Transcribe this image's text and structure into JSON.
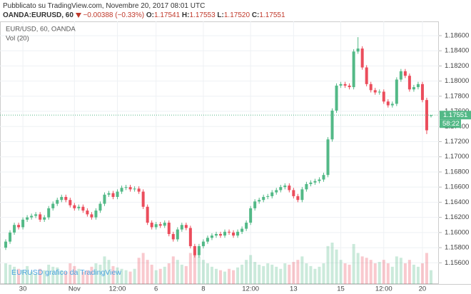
{
  "header": {
    "published": "Pubblicato su TradingView.com, Novembre 20, 2017 08:01 UTC",
    "symbol": "OANDA:EURUSD, 60",
    "change": "−0.00388 (−0.33%)",
    "ohlc": [
      {
        "key": "O:",
        "value": "1.17541"
      },
      {
        "key": "H:",
        "value": "1.17553"
      },
      {
        "key": "L:",
        "value": "1.17520"
      },
      {
        "key": "C:",
        "value": "1.17551"
      }
    ]
  },
  "chart_data": {
    "type": "candlestick",
    "legend": "EUR/USD, 60, OANDA",
    "volume_label": "Vol (20)",
    "countdown": "58:22",
    "watermark": "EURUSD grafico da TradingView",
    "up_color": "#53b987",
    "down_color": "#eb4d5c",
    "grid": true,
    "xlim": [
      -0.5,
      100
    ],
    "ylim": [
      1.1532,
      1.18788
    ],
    "xticks": [
      {
        "value": 4,
        "label": "30"
      },
      {
        "value": 16,
        "label": "Nov"
      },
      {
        "value": 26,
        "label": "12:00"
      },
      {
        "value": 35,
        "label": "6"
      },
      {
        "value": 46,
        "label": "8"
      },
      {
        "value": 57,
        "label": "12:00"
      },
      {
        "value": 67,
        "label": "13"
      },
      {
        "value": 78,
        "label": "15"
      },
      {
        "value": 88,
        "label": "12:00"
      },
      {
        "value": 97,
        "label": "20"
      }
    ],
    "yticks": [
      {
        "value": 1.156,
        "label": "1.15600"
      },
      {
        "value": 1.158,
        "label": "1.15800"
      },
      {
        "value": 1.16,
        "label": "1.16000"
      },
      {
        "value": 1.162,
        "label": "1.16200"
      },
      {
        "value": 1.164,
        "label": "1.16400"
      },
      {
        "value": 1.166,
        "label": "1.16600"
      },
      {
        "value": 1.168,
        "label": "1.16800"
      },
      {
        "value": 1.17,
        "label": "1.17000"
      },
      {
        "value": 1.172,
        "label": "1.17200"
      },
      {
        "value": 1.174,
        "label": "1.17400"
      },
      {
        "value": 1.176,
        "label": "1.17600"
      },
      {
        "value": 1.178,
        "label": "1.17800"
      },
      {
        "value": 1.18,
        "label": "1.18000"
      },
      {
        "value": 1.182,
        "label": "1.18200"
      },
      {
        "value": 1.184,
        "label": "1.18400"
      },
      {
        "value": 1.186,
        "label": "1.18600"
      }
    ],
    "open": [
      1.158,
      1.1588,
      1.16,
      1.161,
      1.1607,
      1.1617,
      1.162,
      1.1622,
      1.1624,
      1.1617,
      1.162,
      1.1632,
      1.1638,
      1.1643,
      1.1647,
      1.1643,
      1.1636,
      1.1632,
      1.1634,
      1.1629,
      1.1624,
      1.162,
      1.1629,
      1.1638,
      1.165,
      1.1652,
      1.1647,
      1.1654,
      1.1659,
      1.166,
      1.1657,
      1.1658,
      1.1654,
      1.1634,
      1.1613,
      1.1607,
      1.1611,
      1.1609,
      1.1613,
      1.1598,
      1.1591,
      1.1604,
      1.161,
      1.1606,
      1.1582,
      1.157,
      1.1582,
      1.1588,
      1.1593,
      1.1596,
      1.1598,
      1.1596,
      1.1601,
      1.16,
      1.1596,
      1.1601,
      1.1605,
      1.1613,
      1.1632,
      1.1641,
      1.1643,
      1.1647,
      1.1648,
      1.1653,
      1.1656,
      1.166,
      1.1662,
      1.1656,
      1.1648,
      1.1643,
      1.1657,
      1.1664,
      1.1666,
      1.1668,
      1.167,
      1.1676,
      1.1723,
      1.1761,
      1.1794,
      1.1796,
      1.1794,
      1.1792,
      1.1839,
      1.1843,
      1.1818,
      1.1796,
      1.1788,
      1.1785,
      1.1786,
      1.1773,
      1.1768,
      1.177,
      1.1802,
      1.1813,
      1.1807,
      1.1789,
      1.1792,
      1.1796,
      1.1775,
      1.17541
    ],
    "high": [
      1.1591,
      1.1603,
      1.1613,
      1.1613,
      1.162,
      1.1623,
      1.1625,
      1.1627,
      1.1627,
      1.1623,
      1.1635,
      1.1641,
      1.1646,
      1.165,
      1.165,
      1.1646,
      1.1639,
      1.1637,
      1.1637,
      1.1632,
      1.1627,
      1.1632,
      1.1641,
      1.1653,
      1.1655,
      1.1655,
      1.1657,
      1.1662,
      1.1663,
      1.1663,
      1.1661,
      1.1661,
      1.1657,
      1.1637,
      1.1616,
      1.1614,
      1.1614,
      1.1616,
      1.1616,
      1.1601,
      1.1607,
      1.1613,
      1.1613,
      1.1609,
      1.1585,
      1.1585,
      1.1591,
      1.1596,
      1.1599,
      1.1601,
      1.1601,
      1.1604,
      1.1604,
      1.1603,
      1.1604,
      1.1608,
      1.1616,
      1.1635,
      1.1644,
      1.1646,
      1.165,
      1.1651,
      1.1656,
      1.1659,
      1.1663,
      1.1665,
      1.1665,
      1.1659,
      1.1651,
      1.166,
      1.1667,
      1.1669,
      1.1671,
      1.1673,
      1.1679,
      1.1726,
      1.1764,
      1.1797,
      1.1799,
      1.1799,
      1.1797,
      1.1842,
      1.1858,
      1.1846,
      1.1821,
      1.1799,
      1.1791,
      1.1789,
      1.1789,
      1.1776,
      1.1773,
      1.1805,
      1.1816,
      1.1816,
      1.181,
      1.1795,
      1.1799,
      1.1799,
      1.1778,
      1.17553
    ],
    "low": [
      1.1577,
      1.1585,
      1.1597,
      1.1604,
      1.1604,
      1.1614,
      1.1617,
      1.1619,
      1.1614,
      1.1614,
      1.1617,
      1.1629,
      1.1635,
      1.164,
      1.164,
      1.1633,
      1.1629,
      1.1629,
      1.1626,
      1.1621,
      1.1617,
      1.1617,
      1.1626,
      1.1635,
      1.1647,
      1.1644,
      1.1644,
      1.1651,
      1.1656,
      1.1654,
      1.1654,
      1.1651,
      1.1631,
      1.161,
      1.1604,
      1.1604,
      1.1606,
      1.1606,
      1.1595,
      1.1588,
      1.1588,
      1.1601,
      1.1603,
      1.1579,
      1.1567,
      1.1567,
      1.1579,
      1.1585,
      1.159,
      1.1593,
      1.1593,
      1.1593,
      1.1597,
      1.1593,
      1.1593,
      1.1598,
      1.1602,
      1.161,
      1.1629,
      1.1638,
      1.164,
      1.1644,
      1.1645,
      1.165,
      1.1653,
      1.1657,
      1.1653,
      1.1645,
      1.164,
      1.164,
      1.1654,
      1.1661,
      1.1663,
      1.1665,
      1.1667,
      1.1673,
      1.172,
      1.1758,
      1.1791,
      1.1791,
      1.1789,
      1.1789,
      1.1836,
      1.1815,
      1.1793,
      1.1785,
      1.1782,
      1.1782,
      1.177,
      1.1765,
      1.1765,
      1.1767,
      1.1799,
      1.1804,
      1.1786,
      1.1786,
      1.1789,
      1.1772,
      1.173,
      1.1752
    ],
    "close": [
      1.1588,
      1.16,
      1.161,
      1.1607,
      1.1617,
      1.162,
      1.1622,
      1.1624,
      1.1617,
      1.162,
      1.1632,
      1.1638,
      1.1643,
      1.1647,
      1.1643,
      1.1636,
      1.1632,
      1.1634,
      1.1629,
      1.1624,
      1.162,
      1.1629,
      1.1638,
      1.165,
      1.1652,
      1.1647,
      1.1654,
      1.1659,
      1.166,
      1.1657,
      1.1658,
      1.1654,
      1.1634,
      1.1613,
      1.1607,
      1.1611,
      1.1609,
      1.1613,
      1.1598,
      1.1591,
      1.1604,
      1.161,
      1.1606,
      1.1582,
      1.157,
      1.1582,
      1.1588,
      1.1593,
      1.1596,
      1.1598,
      1.1596,
      1.1601,
      1.16,
      1.1596,
      1.1601,
      1.1605,
      1.1613,
      1.1632,
      1.1641,
      1.1643,
      1.1647,
      1.1648,
      1.1653,
      1.1656,
      1.166,
      1.1662,
      1.1656,
      1.1648,
      1.1643,
      1.1657,
      1.1664,
      1.1666,
      1.1668,
      1.167,
      1.1676,
      1.1723,
      1.1761,
      1.1794,
      1.1796,
      1.1794,
      1.1792,
      1.1839,
      1.1843,
      1.1818,
      1.1796,
      1.1788,
      1.1785,
      1.1786,
      1.1773,
      1.1768,
      1.177,
      1.1802,
      1.1813,
      1.1807,
      1.1789,
      1.1792,
      1.1796,
      1.1775,
      1.1735,
      1.17551
    ],
    "volume": [
      30,
      28,
      25,
      22,
      20,
      26,
      18,
      15,
      22,
      20,
      28,
      25,
      24,
      20,
      18,
      30,
      26,
      22,
      18,
      20,
      25,
      30,
      28,
      40,
      35,
      26,
      24,
      22,
      20,
      18,
      22,
      38,
      45,
      35,
      28,
      20,
      22,
      25,
      30,
      40,
      35,
      28,
      26,
      45,
      55,
      40,
      35,
      30,
      25,
      22,
      20,
      18,
      22,
      20,
      24,
      28,
      35,
      42,
      32,
      28,
      26,
      30,
      28,
      25,
      22,
      30,
      28,
      32,
      35,
      40,
      30,
      26,
      22,
      25,
      30,
      55,
      60,
      50,
      35,
      30,
      28,
      58,
      45,
      40,
      38,
      35,
      30,
      32,
      35,
      30,
      25,
      40,
      38,
      30,
      35,
      28,
      25,
      30,
      45,
      20
    ]
  }
}
